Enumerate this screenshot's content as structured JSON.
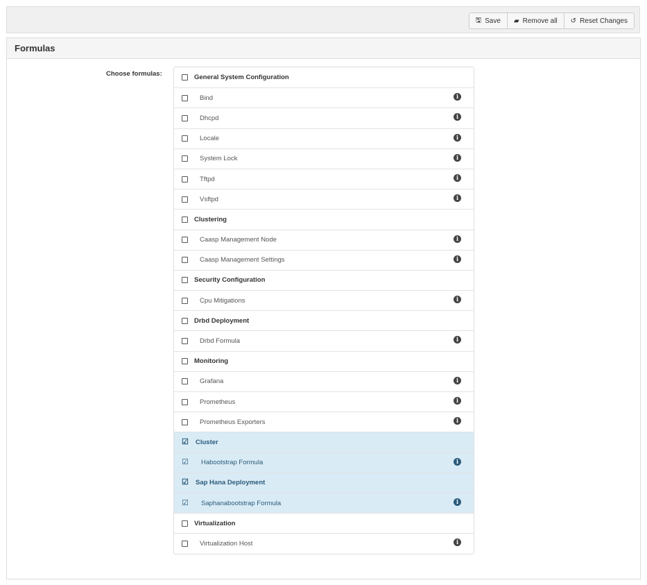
{
  "toolbar": {
    "save": "Save",
    "remove_all": "Remove all",
    "reset": "Reset Changes"
  },
  "panel": {
    "title": "Formulas",
    "choose_label": "Choose formulas:"
  },
  "rows": [
    {
      "label": "General System Configuration",
      "type": "group",
      "checked": false,
      "info": false
    },
    {
      "label": "Bind",
      "type": "item",
      "checked": false,
      "info": true
    },
    {
      "label": "Dhcpd",
      "type": "item",
      "checked": false,
      "info": true
    },
    {
      "label": "Locale",
      "type": "item",
      "checked": false,
      "info": true
    },
    {
      "label": "System Lock",
      "type": "item",
      "checked": false,
      "info": true
    },
    {
      "label": "Tftpd",
      "type": "item",
      "checked": false,
      "info": true
    },
    {
      "label": "Vsftpd",
      "type": "item",
      "checked": false,
      "info": true
    },
    {
      "label": "Clustering",
      "type": "group",
      "checked": false,
      "info": false
    },
    {
      "label": "Caasp Management Node",
      "type": "item",
      "checked": false,
      "info": true
    },
    {
      "label": "Caasp Management Settings",
      "type": "item",
      "checked": false,
      "info": true
    },
    {
      "label": "Security Configuration",
      "type": "group",
      "checked": false,
      "info": false
    },
    {
      "label": "Cpu Mitigations",
      "type": "item",
      "checked": false,
      "info": true
    },
    {
      "label": "Drbd Deployment",
      "type": "group",
      "checked": false,
      "info": false
    },
    {
      "label": "Drbd Formula",
      "type": "item",
      "checked": false,
      "info": true
    },
    {
      "label": "Monitoring",
      "type": "group",
      "checked": false,
      "info": false
    },
    {
      "label": "Grafana",
      "type": "item",
      "checked": false,
      "info": true
    },
    {
      "label": "Prometheus",
      "type": "item",
      "checked": false,
      "info": true
    },
    {
      "label": "Prometheus Exporters",
      "type": "item",
      "checked": false,
      "info": true
    },
    {
      "label": "Cluster",
      "type": "group",
      "checked": true,
      "info": false
    },
    {
      "label": "Habootstrap Formula",
      "type": "item",
      "checked": true,
      "info": true
    },
    {
      "label": "Sap Hana Deployment",
      "type": "group",
      "checked": true,
      "info": false
    },
    {
      "label": "Saphanabootstrap Formula",
      "type": "item",
      "checked": true,
      "info": true
    },
    {
      "label": "Virtualization",
      "type": "group",
      "checked": false,
      "info": false
    },
    {
      "label": "Virtualization Host",
      "type": "item",
      "checked": false,
      "info": true
    }
  ],
  "colors": {
    "selected_bg": "#d9ebf5",
    "selected_text": "#2b5b7a"
  }
}
